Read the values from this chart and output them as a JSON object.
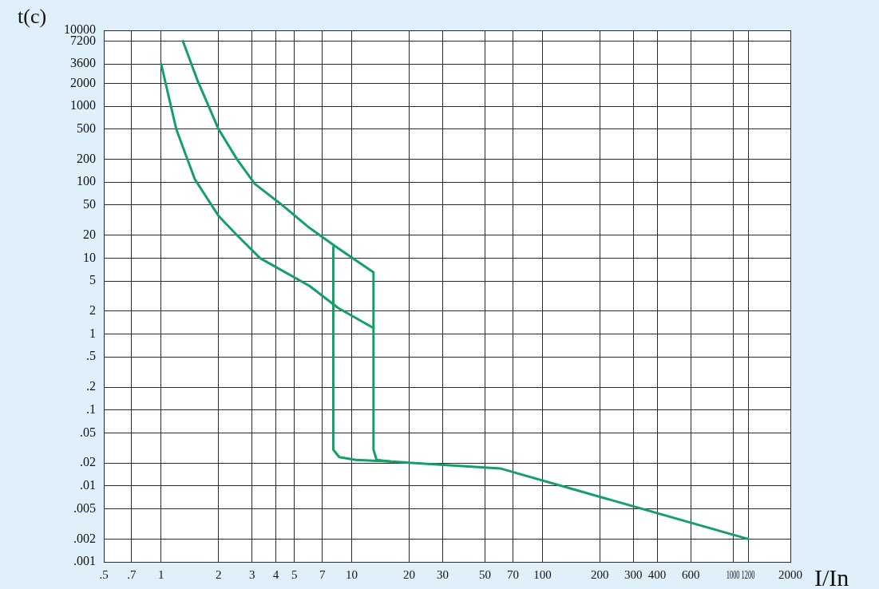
{
  "chart_data": {
    "type": "line",
    "xlabel": "I/In",
    "ylabel": "t(c)",
    "log": "xy",
    "grid": true,
    "marker": "none",
    "line_style": "solid",
    "xlim": [
      0.5,
      2000
    ],
    "ylim": [
      0.001,
      10000
    ],
    "xticks": [
      {
        "value": 0.5,
        "label": ".5"
      },
      {
        "value": 0.7,
        "label": ".7"
      },
      1,
      2,
      3,
      4,
      5,
      7,
      10,
      20,
      30,
      50,
      70,
      100,
      200,
      300,
      400,
      600,
      1000,
      1200,
      2000
    ],
    "yticks": [
      {
        "value": 0.001,
        "label": ".001"
      },
      {
        "value": 0.002,
        "label": ".002"
      },
      {
        "value": 0.005,
        "label": ".005"
      },
      {
        "value": 0.01,
        "label": ".01"
      },
      {
        "value": 0.02,
        "label": ".02"
      },
      {
        "value": 0.05,
        "label": ".05"
      },
      {
        "value": 0.1,
        "label": ".1"
      },
      {
        "value": 0.2,
        "label": ".2"
      },
      {
        "value": 0.5,
        "label": ".5"
      },
      1,
      2,
      5,
      10,
      20,
      50,
      100,
      200,
      500,
      1000,
      2000,
      3600,
      7200,
      10000
    ],
    "series": [
      {
        "color": "#14a064",
        "x": [
          1,
          1.2,
          1.5,
          2,
          2.5,
          3.3,
          6,
          8.5,
          13
        ],
        "values": [
          3600,
          500,
          110,
          36,
          20,
          10,
          4.3,
          2.2,
          1.2
        ]
      },
      {
        "color": "#14a064",
        "x": [
          1.3,
          1.55,
          2,
          2.5,
          3.1,
          4.4,
          6,
          8.3,
          13,
          13,
          13.5,
          16,
          60,
          1200
        ],
        "values": [
          7200,
          2200,
          500,
          200,
          95,
          48,
          25,
          14,
          6.5,
          0.03,
          0.022,
          0.021,
          0.017,
          0.002
        ]
      },
      {
        "color": "#14a064",
        "x": [
          8,
          8,
          8.6,
          10.5,
          16
        ],
        "values": [
          14,
          0.03,
          0.024,
          0.022,
          0.021
        ]
      }
    ]
  }
}
